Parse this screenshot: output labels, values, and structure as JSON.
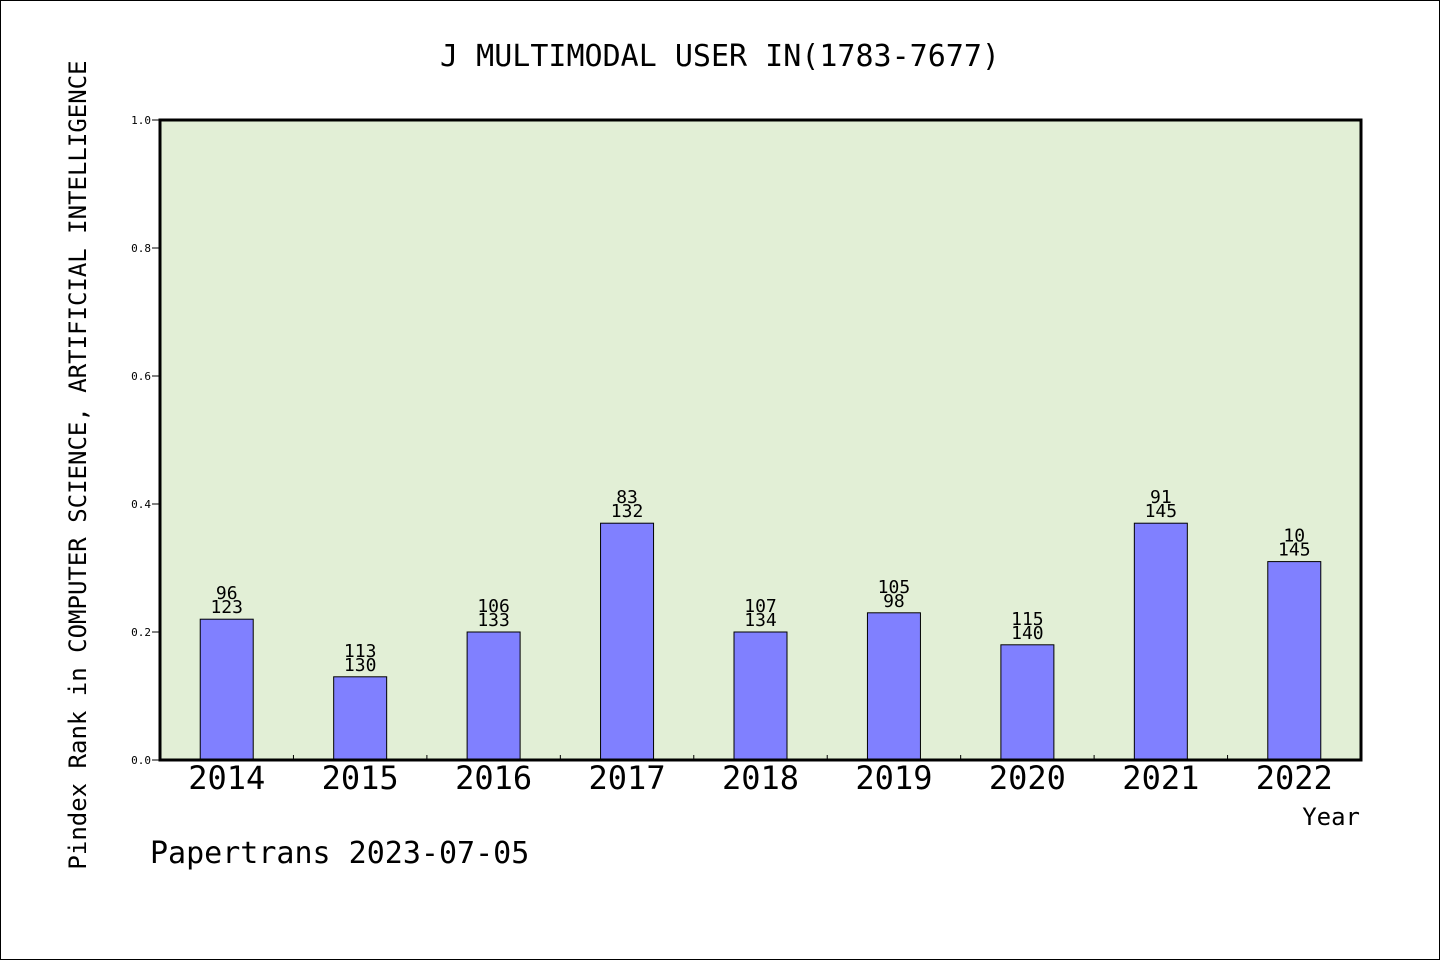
{
  "chart_data": {
    "type": "bar",
    "title": "J MULTIMODAL USER IN(1783-7677)",
    "ylabel": "Pindex Rank in COMPUTER SCIENCE, ARTIFICIAL INTELLIGENCE",
    "xlabel": "Year",
    "categories": [
      "2014",
      "2015",
      "2016",
      "2017",
      "2018",
      "2019",
      "2020",
      "2021",
      "2022"
    ],
    "values": [
      0.22,
      0.13,
      0.2,
      0.37,
      0.2,
      0.23,
      0.18,
      0.37,
      0.31
    ],
    "label_top": [
      "96",
      "113",
      "106",
      "83",
      "107",
      "105",
      "115",
      "91",
      "10"
    ],
    "label_bottom": [
      "123",
      "130",
      "133",
      "132",
      "134",
      "98",
      "140",
      "145",
      "145"
    ],
    "ylim": [
      0,
      1.0
    ],
    "yticks": [
      "0.0",
      "0.2",
      "0.4",
      "0.6",
      "0.8",
      "1.0"
    ],
    "bar_color": "#8080ff",
    "plot_bg": "#e2efd6",
    "grid": false,
    "legend": "none"
  },
  "footer": "Papertrans 2023-07-05"
}
